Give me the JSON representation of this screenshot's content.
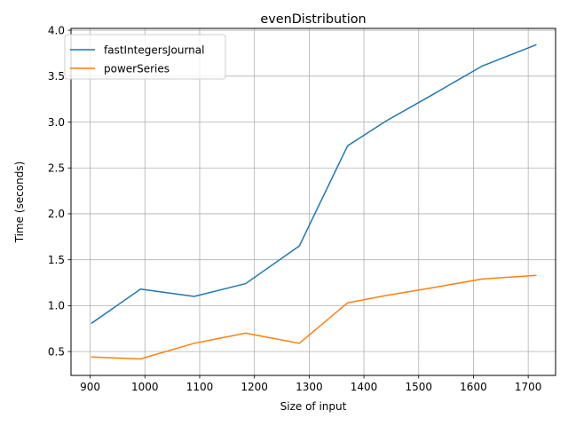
{
  "chart_data": {
    "type": "line",
    "title": "evenDistribution",
    "xlabel": "Size of input",
    "ylabel": "Time (seconds)",
    "xlim": [
      865,
      1750
    ],
    "ylim": [
      0.24,
      4.02
    ],
    "xticks": [
      900,
      1000,
      1100,
      1200,
      1300,
      1400,
      1500,
      1600,
      1700
    ],
    "yticks": [
      0.5,
      1.0,
      1.5,
      2.0,
      2.5,
      3.0,
      3.5,
      4.0
    ],
    "xtick_labels": [
      "900",
      "1000",
      "1100",
      "1200",
      "1300",
      "1400",
      "1500",
      "1600",
      "1700"
    ],
    "ytick_labels": [
      "0.5",
      "1.0",
      "1.5",
      "2.0",
      "2.5",
      "3.0",
      "3.5",
      "4.0"
    ],
    "grid": true,
    "legend_position": "upper-left",
    "series": [
      {
        "name": "fastIntegersJournal",
        "color": "#1f77b4",
        "x": [
          903,
          992,
          1090,
          1184,
          1282,
          1370,
          1440,
          1520,
          1616,
          1714
        ],
        "y": [
          0.81,
          1.18,
          1.1,
          1.24,
          1.65,
          2.74,
          3.01,
          3.28,
          3.61,
          3.84
        ]
      },
      {
        "name": "powerSeries",
        "color": "#ff7f0e",
        "x": [
          903,
          992,
          1090,
          1184,
          1282,
          1370,
          1440,
          1520,
          1616,
          1714
        ],
        "y": [
          0.44,
          0.42,
          0.59,
          0.7,
          0.59,
          1.03,
          1.11,
          1.19,
          1.29,
          1.33
        ]
      }
    ]
  }
}
